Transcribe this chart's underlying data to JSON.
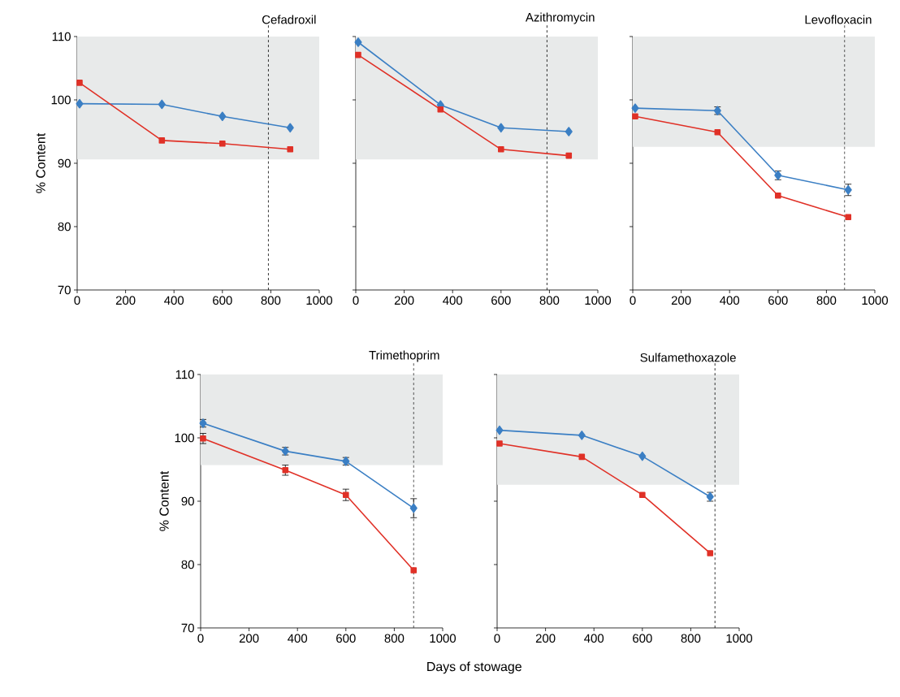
{
  "chart_data": [
    {
      "type": "line",
      "title": "Cefadroxil",
      "ylabel": "% Content",
      "x": [
        10,
        350,
        600,
        880
      ],
      "xlim": [
        0,
        1000
      ],
      "ylim": [
        70,
        110
      ],
      "xticks": [
        0,
        200,
        400,
        600,
        800,
        1000
      ],
      "yticks": [
        70,
        80,
        90,
        100,
        110
      ],
      "grid": false,
      "series": [
        {
          "color": "#3b7fc4",
          "marker": "diamond",
          "values": [
            99.4,
            99.3,
            97.4,
            95.6
          ]
        },
        {
          "color": "#e03127",
          "marker": "square",
          "values": [
            102.7,
            93.6,
            93.1,
            92.2
          ]
        }
      ],
      "bands": [
        {
          "axis": "y",
          "from": 90.6,
          "to": 110,
          "color": "#e8eaea"
        }
      ],
      "ref_lines": [
        {
          "axis": "x",
          "value": 790,
          "line_style": "dashed"
        }
      ]
    },
    {
      "type": "line",
      "title": "Azithromycin",
      "x": [
        10,
        350,
        600,
        880
      ],
      "xlim": [
        0,
        1000
      ],
      "ylim": [
        70,
        110
      ],
      "xticks": [
        0,
        200,
        400,
        600,
        800,
        1000
      ],
      "yticks": [
        70,
        80,
        90,
        100,
        110
      ],
      "tick_labels": "x",
      "grid": false,
      "series": [
        {
          "color": "#3b7fc4",
          "marker": "diamond",
          "values": [
            109.1,
            99.2,
            95.6,
            95.0
          ]
        },
        {
          "color": "#e03127",
          "marker": "square",
          "values": [
            107.1,
            98.5,
            92.2,
            91.2
          ]
        }
      ],
      "bands": [
        {
          "axis": "y",
          "from": 90.6,
          "to": 110,
          "color": "#e8eaea"
        }
      ],
      "ref_lines": [
        {
          "axis": "x",
          "value": 790,
          "line_style": "dashed"
        }
      ]
    },
    {
      "type": "line",
      "title": "Levofloxacin",
      "x": [
        10,
        350,
        600,
        890
      ],
      "xlim": [
        0,
        1000
      ],
      "ylim": [
        70,
        110
      ],
      "xticks": [
        0,
        200,
        400,
        600,
        800,
        1000
      ],
      "yticks": [
        70,
        80,
        90,
        100,
        110
      ],
      "tick_labels": "x",
      "grid": false,
      "series": [
        {
          "color": "#3b7fc4",
          "marker": "diamond",
          "values": [
            98.7,
            98.3,
            88.1,
            85.8
          ],
          "errors": [
            null,
            0.6,
            0.7,
            0.9
          ]
        },
        {
          "color": "#e03127",
          "marker": "square",
          "values": [
            97.4,
            94.9,
            84.9,
            81.5
          ]
        }
      ],
      "bands": [
        {
          "axis": "y",
          "from": 92.6,
          "to": 110,
          "color": "#e8eaea"
        }
      ],
      "ref_lines": [
        {
          "axis": "x",
          "value": 875,
          "line_style": "dashed",
          "color": "#2a2a2a"
        }
      ]
    },
    {
      "type": "line",
      "title": "Trimethoprim",
      "ylabel": "% Content",
      "xlabel": "Days of stowage",
      "x": [
        10,
        350,
        600,
        880
      ],
      "xlim": [
        0,
        1000
      ],
      "ylim": [
        70,
        110
      ],
      "xticks": [
        0,
        200,
        400,
        600,
        800,
        1000
      ],
      "yticks": [
        70,
        80,
        90,
        100,
        110
      ],
      "grid": false,
      "series": [
        {
          "color": "#3b7fc4",
          "marker": "diamond",
          "values": [
            102.3,
            97.9,
            96.3,
            88.9
          ],
          "errors": [
            0.6,
            0.6,
            0.6,
            1.5
          ]
        },
        {
          "color": "#e03127",
          "marker": "square",
          "values": [
            99.9,
            94.9,
            91.0,
            79.1
          ],
          "errors": [
            0.8,
            0.8,
            0.9,
            null
          ]
        }
      ],
      "bands": [
        {
          "axis": "y",
          "from": 95.7,
          "to": 110,
          "color": "#e8eaea"
        }
      ],
      "ref_lines": [
        {
          "axis": "x",
          "value": 880,
          "line_style": "dashed",
          "color": "#2a2a2a"
        }
      ]
    },
    {
      "type": "line",
      "title": "Sulfamethoxazole",
      "x": [
        10,
        350,
        600,
        880
      ],
      "xlim": [
        0,
        1000
      ],
      "ylim": [
        70,
        110
      ],
      "xticks": [
        0,
        200,
        400,
        600,
        800,
        1000
      ],
      "yticks": [
        70,
        80,
        90,
        100,
        110
      ],
      "tick_labels": "x",
      "grid": false,
      "series": [
        {
          "color": "#3b7fc4",
          "marker": "diamond",
          "values": [
            101.2,
            100.4,
            97.1,
            90.7
          ],
          "errors": [
            null,
            null,
            null,
            0.7
          ]
        },
        {
          "color": "#e03127",
          "marker": "square",
          "values": [
            99.1,
            97.0,
            91.0,
            81.8
          ]
        }
      ],
      "bands": [
        {
          "axis": "y",
          "from": 92.6,
          "to": 110,
          "color": "#e8eaea"
        }
      ],
      "ref_lines": [
        {
          "axis": "x",
          "value": 900,
          "line_style": "dashed"
        }
      ]
    }
  ]
}
